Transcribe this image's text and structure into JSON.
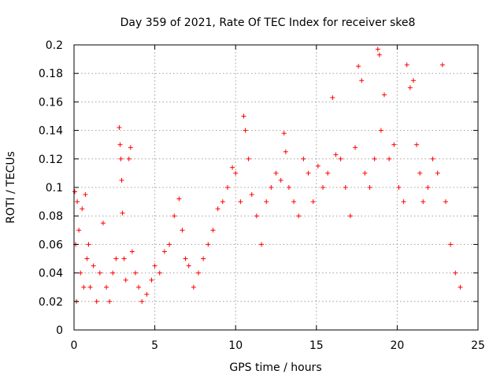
{
  "chart_data": {
    "type": "scatter",
    "title": "Day 359 of 2021, Rate Of TEC Index for receiver ske8",
    "xlabel": "GPS time / hours",
    "ylabel": "ROTI / TECUs",
    "xlim": [
      0,
      25
    ],
    "ylim": [
      0,
      0.2
    ],
    "x_ticks": [
      "0",
      "5",
      "10",
      "15",
      "20",
      "25"
    ],
    "y_ticks": [
      "0",
      "0.02",
      "0.04",
      "0.06",
      "0.08",
      "0.1",
      "0.12",
      "0.14",
      "0.16",
      "0.18",
      "0.2"
    ],
    "grid": true,
    "marker": "+",
    "color": "#ff0000",
    "series": [
      {
        "x": [
          0.05,
          0.1,
          0.15,
          0.2,
          0.3,
          0.4,
          0.5,
          0.6,
          0.7,
          0.8,
          0.9,
          1.0,
          1.2,
          1.4,
          1.6,
          1.8,
          2.0,
          2.2,
          2.4,
          2.6,
          2.8,
          2.85,
          2.9,
          2.95,
          3.0,
          3.1,
          3.2,
          3.4,
          3.5,
          3.6,
          3.8,
          4.0,
          4.2,
          4.5,
          4.8,
          5.0,
          5.3,
          5.6,
          5.9,
          6.2,
          6.5,
          6.7,
          6.9,
          7.1,
          7.4,
          7.7,
          8.0,
          8.3,
          8.6,
          8.9,
          9.2,
          9.5,
          9.8,
          10.0,
          10.3,
          10.5,
          10.6,
          10.8,
          11.0,
          11.3,
          11.6,
          11.9,
          12.2,
          12.5,
          12.8,
          13.0,
          13.1,
          13.3,
          13.6,
          13.9,
          14.2,
          14.5,
          14.8,
          15.1,
          15.4,
          15.7,
          16.0,
          16.2,
          16.5,
          16.8,
          17.1,
          17.4,
          17.6,
          17.8,
          18.0,
          18.3,
          18.6,
          18.8,
          18.9,
          19.0,
          19.2,
          19.5,
          19.8,
          20.1,
          20.4,
          20.6,
          20.8,
          21.0,
          21.2,
          21.4,
          21.6,
          21.9,
          22.2,
          22.5,
          22.8,
          23.0,
          23.3,
          23.6,
          23.9
        ],
        "y": [
          0.097,
          0.06,
          0.02,
          0.09,
          0.07,
          0.04,
          0.085,
          0.03,
          0.095,
          0.05,
          0.06,
          0.03,
          0.045,
          0.02,
          0.04,
          0.075,
          0.03,
          0.02,
          0.04,
          0.05,
          0.142,
          0.13,
          0.12,
          0.105,
          0.082,
          0.05,
          0.035,
          0.12,
          0.128,
          0.055,
          0.04,
          0.03,
          0.02,
          0.025,
          0.035,
          0.045,
          0.04,
          0.055,
          0.06,
          0.08,
          0.092,
          0.07,
          0.05,
          0.045,
          0.03,
          0.04,
          0.05,
          0.06,
          0.07,
          0.085,
          0.09,
          0.1,
          0.114,
          0.11,
          0.09,
          0.15,
          0.14,
          0.12,
          0.095,
          0.08,
          0.06,
          0.09,
          0.1,
          0.11,
          0.105,
          0.138,
          0.125,
          0.1,
          0.09,
          0.08,
          0.12,
          0.11,
          0.09,
          0.115,
          0.1,
          0.11,
          0.163,
          0.123,
          0.12,
          0.1,
          0.08,
          0.128,
          0.185,
          0.175,
          0.11,
          0.1,
          0.12,
          0.197,
          0.193,
          0.14,
          0.165,
          0.12,
          0.13,
          0.1,
          0.09,
          0.186,
          0.17,
          0.175,
          0.13,
          0.11,
          0.09,
          0.1,
          0.12,
          0.11,
          0.186,
          0.09,
          0.06,
          0.04,
          0.03
        ]
      }
    ]
  }
}
